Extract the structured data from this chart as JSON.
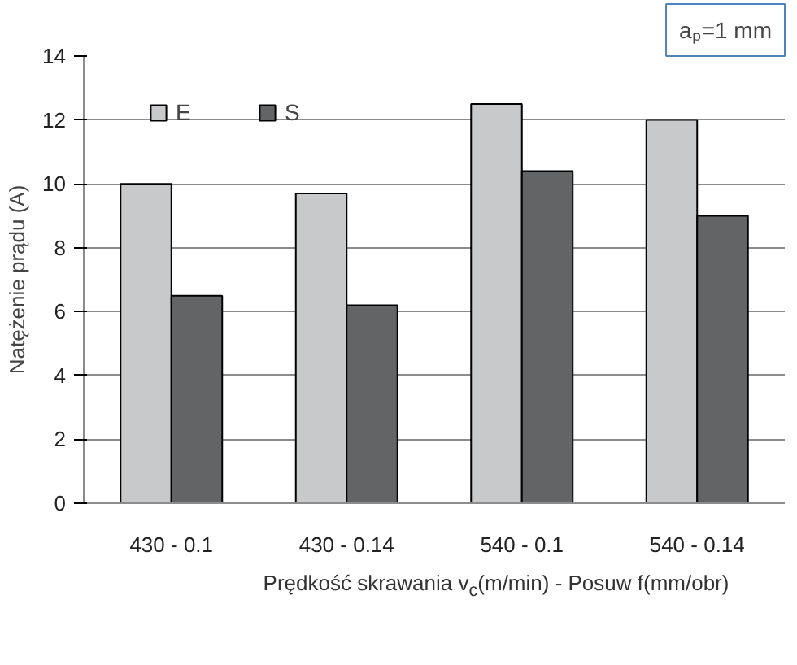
{
  "chart_data": {
    "type": "bar",
    "categories": [
      "430 - 0.1",
      "430 - 0.14",
      "540 - 0.1",
      "540 - 0.14"
    ],
    "series": [
      {
        "name": "E",
        "color": "#c8c9cb",
        "values": [
          10,
          9.7,
          12.5,
          12.0
        ]
      },
      {
        "name": "S",
        "color": "#636466",
        "values": [
          6.5,
          6.2,
          10.4,
          9.0
        ]
      }
    ],
    "ylabel": "Natężenie prądu (A)",
    "xlabel": "Prędkość skrawania v$_{c}$(m/min) - Posuw f(mm/obr)",
    "annotations": [
      "aₚ=1 mm"
    ],
    "ylim": [
      0,
      14
    ],
    "yticks": [
      0,
      2,
      4,
      6,
      8,
      10,
      12,
      14
    ],
    "grid": "y",
    "legend": "top left"
  }
}
